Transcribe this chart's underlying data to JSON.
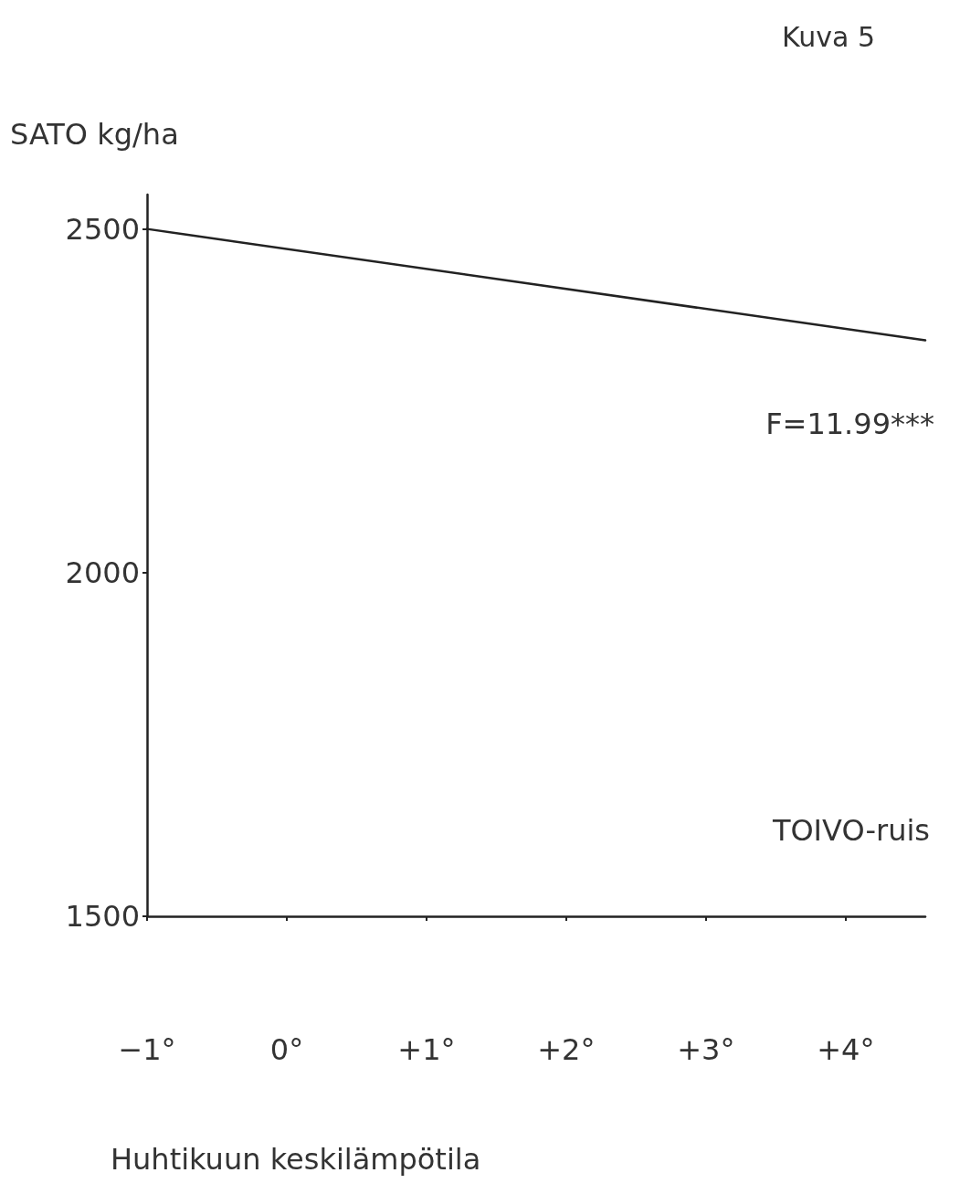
{
  "chart_data": {
    "type": "line",
    "title": "Kuva 5",
    "xlabel": "Huhtikuun keskilämpötila",
    "ylabel": "SATO kg/ha",
    "annotations": [
      "F=11.99***",
      "TOIVO-ruis"
    ],
    "x": [
      -1,
      4.57
    ],
    "series": [
      {
        "color": "#222222",
        "values": [
          2500,
          2338
        ]
      }
    ],
    "xlim": [
      -1,
      4.57
    ],
    "xticks": [
      {
        "value": -1,
        "label": "−1°"
      },
      {
        "value": 0,
        "label": "0°"
      },
      {
        "value": 1,
        "label": "+1°"
      },
      {
        "value": 2,
        "label": "+2°"
      },
      {
        "value": 3,
        "label": "+3°"
      },
      {
        "value": 4,
        "label": "+4°"
      }
    ],
    "ylim": [
      1500,
      2550
    ],
    "yticks": [
      1500,
      2000,
      2500
    ],
    "marker": "none",
    "line_style": "solid"
  }
}
